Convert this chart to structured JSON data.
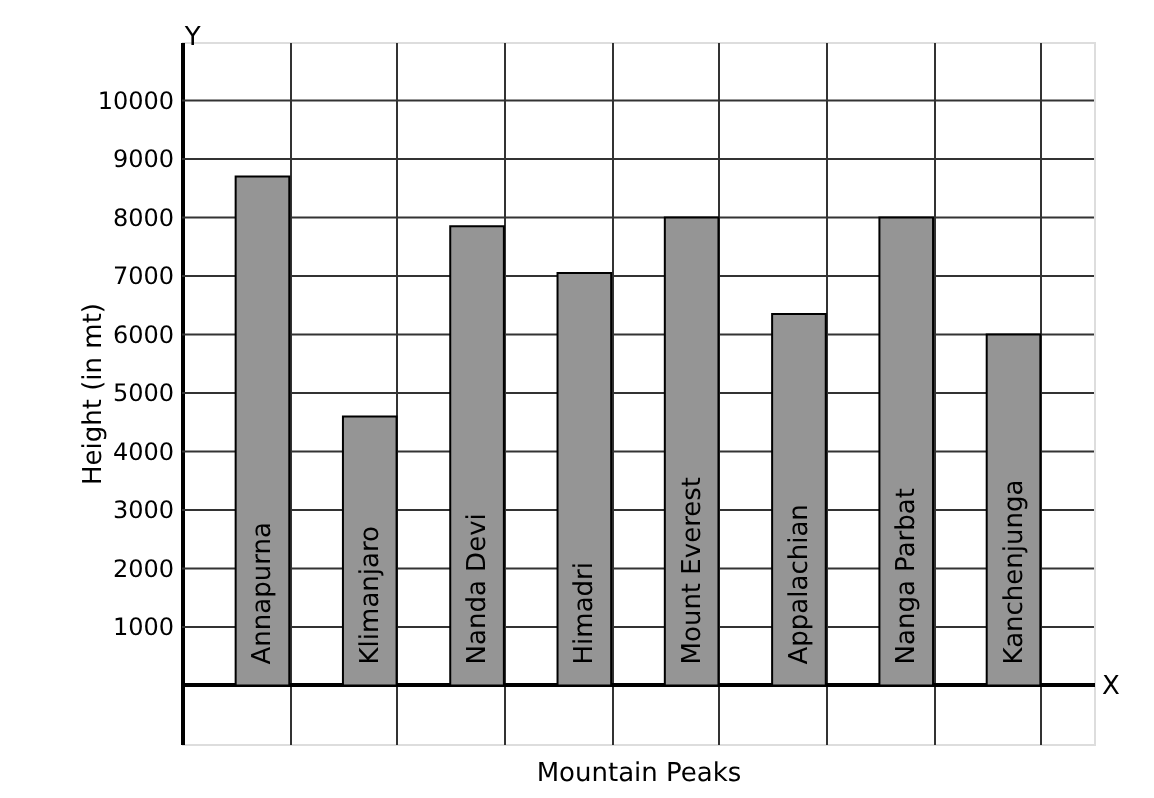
{
  "chart_data": {
    "type": "bar",
    "xlabel": "Mountain Peaks",
    "ylabel": "Height (in mt)",
    "categories": [
      "Annapurna",
      "Klimanjaro",
      "Nanda Devi",
      "Himadri",
      "Mount Everest",
      "Appalachian",
      "Nanga Parbat",
      "Kanchenjunga"
    ],
    "values": [
      8700,
      4600,
      7850,
      7050,
      8000,
      6350,
      8000,
      6000
    ],
    "color": "#959595",
    "ylim": [
      -1000,
      11000
    ],
    "yticks": [
      1000,
      2000,
      3000,
      4000,
      5000,
      6000,
      7000,
      8000,
      9000,
      10000
    ],
    "grid": true,
    "annotations": [
      "X",
      "Y"
    ]
  }
}
